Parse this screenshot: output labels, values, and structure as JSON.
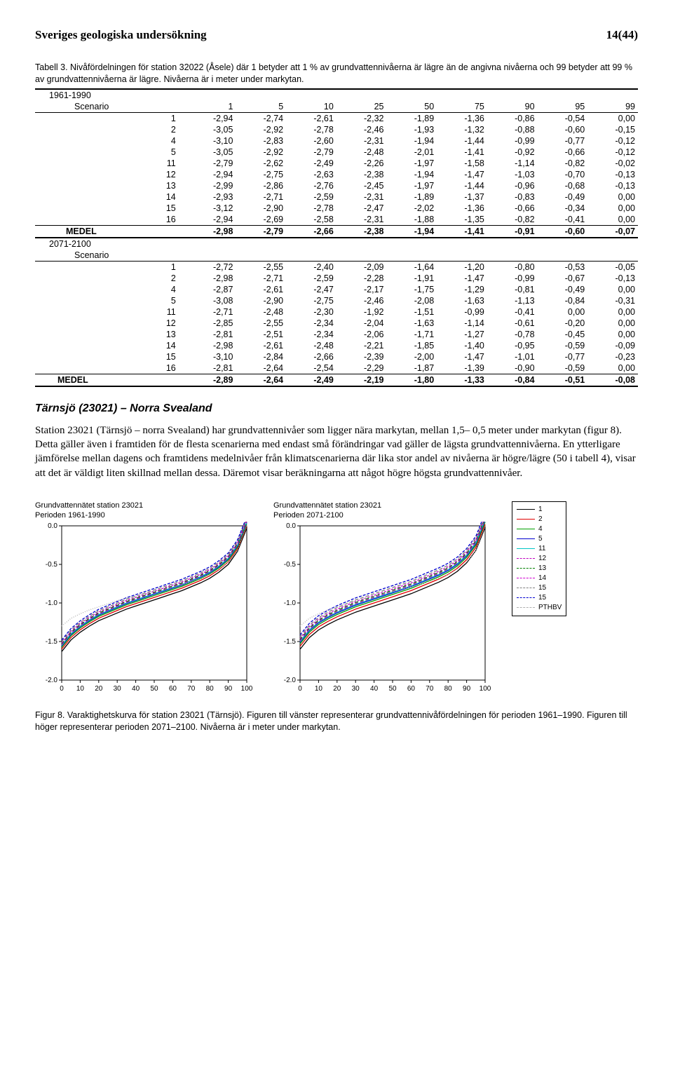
{
  "header": {
    "title": "Sveriges geologiska undersökning",
    "page": "14(44)"
  },
  "table": {
    "caption": "Tabell 3. Nivåfördelningen för station 32022 (Åsele) där 1 betyder att 1 % av grundvattennivåerna är lägre än de angivna nivåerna och 99 betyder att 99 % av grundvattennivåerna är lägre. Nivåerna är i meter under markytan.",
    "block1_label": "1961-1990",
    "block2_label": "2071-2100",
    "scenario_label": "Scenario",
    "medel_label": "MEDEL",
    "cols": [
      "1",
      "5",
      "10",
      "25",
      "50",
      "75",
      "90",
      "95",
      "99"
    ],
    "block1_rows": [
      [
        "1",
        "-2,94",
        "-2,74",
        "-2,61",
        "-2,32",
        "-1,89",
        "-1,36",
        "-0,86",
        "-0,54",
        "0,00"
      ],
      [
        "2",
        "-3,05",
        "-2,92",
        "-2,78",
        "-2,46",
        "-1,93",
        "-1,32",
        "-0,88",
        "-0,60",
        "-0,15"
      ],
      [
        "4",
        "-3,10",
        "-2,83",
        "-2,60",
        "-2,31",
        "-1,94",
        "-1,44",
        "-0,99",
        "-0,77",
        "-0,12"
      ],
      [
        "5",
        "-3,05",
        "-2,92",
        "-2,79",
        "-2,48",
        "-2,01",
        "-1,41",
        "-0,92",
        "-0,66",
        "-0,12"
      ],
      [
        "11",
        "-2,79",
        "-2,62",
        "-2,49",
        "-2,26",
        "-1,97",
        "-1,58",
        "-1,14",
        "-0,82",
        "-0,02"
      ],
      [
        "12",
        "-2,94",
        "-2,75",
        "-2,63",
        "-2,38",
        "-1,94",
        "-1,47",
        "-1,03",
        "-0,70",
        "-0,13"
      ],
      [
        "13",
        "-2,99",
        "-2,86",
        "-2,76",
        "-2,45",
        "-1,97",
        "-1,44",
        "-0,96",
        "-0,68",
        "-0,13"
      ],
      [
        "14",
        "-2,93",
        "-2,71",
        "-2,59",
        "-2,31",
        "-1,89",
        "-1,37",
        "-0,83",
        "-0,49",
        "0,00"
      ],
      [
        "15",
        "-3,12",
        "-2,90",
        "-2,78",
        "-2,47",
        "-2,02",
        "-1,36",
        "-0,66",
        "-0,34",
        "0,00"
      ],
      [
        "16",
        "-2,94",
        "-2,69",
        "-2,58",
        "-2,31",
        "-1,88",
        "-1,35",
        "-0,82",
        "-0,41",
        "0,00"
      ]
    ],
    "block1_medel": [
      "-2,98",
      "-2,79",
      "-2,66",
      "-2,38",
      "-1,94",
      "-1,41",
      "-0,91",
      "-0,60",
      "-0,07"
    ],
    "block2_rows": [
      [
        "1",
        "-2,72",
        "-2,55",
        "-2,40",
        "-2,09",
        "-1,64",
        "-1,20",
        "-0,80",
        "-0,53",
        "-0,05"
      ],
      [
        "2",
        "-2,98",
        "-2,71",
        "-2,59",
        "-2,28",
        "-1,91",
        "-1,47",
        "-0,99",
        "-0,67",
        "-0,13"
      ],
      [
        "4",
        "-2,87",
        "-2,61",
        "-2,47",
        "-2,17",
        "-1,75",
        "-1,29",
        "-0,81",
        "-0,49",
        "0,00"
      ],
      [
        "5",
        "-3,08",
        "-2,90",
        "-2,75",
        "-2,46",
        "-2,08",
        "-1,63",
        "-1,13",
        "-0,84",
        "-0,31"
      ],
      [
        "11",
        "-2,71",
        "-2,48",
        "-2,30",
        "-1,92",
        "-1,51",
        "-0,99",
        "-0,41",
        "0,00",
        "0,00"
      ],
      [
        "12",
        "-2,85",
        "-2,55",
        "-2,34",
        "-2,04",
        "-1,63",
        "-1,14",
        "-0,61",
        "-0,20",
        "0,00"
      ],
      [
        "13",
        "-2,81",
        "-2,51",
        "-2,34",
        "-2,06",
        "-1,71",
        "-1,27",
        "-0,78",
        "-0,45",
        "0,00"
      ],
      [
        "14",
        "-2,98",
        "-2,61",
        "-2,48",
        "-2,21",
        "-1,85",
        "-1,40",
        "-0,95",
        "-0,59",
        "-0,09"
      ],
      [
        "15",
        "-3,10",
        "-2,84",
        "-2,66",
        "-2,39",
        "-2,00",
        "-1,47",
        "-1,01",
        "-0,77",
        "-0,23"
      ],
      [
        "16",
        "-2,81",
        "-2,64",
        "-2,54",
        "-2,29",
        "-1,87",
        "-1,39",
        "-0,90",
        "-0,59",
        "0,00"
      ]
    ],
    "block2_medel": [
      "-2,89",
      "-2,64",
      "-2,49",
      "-2,19",
      "-1,80",
      "-1,33",
      "-0,84",
      "-0,51",
      "-0,08"
    ]
  },
  "section_heading": "Tärnsjö (23021) – Norra Svealand",
  "body_text": "Station 23021 (Tärnsjö – norra Svealand) har grundvattennivåer som ligger nära markytan, mellan 1,5– 0,5 meter under markytan (figur 8). Detta gäller även i framtiden för de flesta scenarierna med endast små förändringar vad gäller de lägsta grundvattennivåerna. En ytterligare jämförelse mellan dagens och framtidens medelnivåer från klimatscenarierna där lika stor andel av nivåerna är högre/lägre (50 i tabell 4), visar att det är väldigt liten skillnad mellan dessa. Däremot visar beräkningarna att något högre högsta grundvattennivåer.",
  "charts": {
    "left": {
      "title_l1": "Grundvattennätet station 23021",
      "title_l2": "Perioden 1961-1990"
    },
    "right": {
      "title_l1": "Grundvattennätet station 23021",
      "title_l2": "Perioden 2071-2100"
    },
    "ylim": [
      -2.0,
      0.0
    ],
    "yticks": [
      "0.0",
      "-0.5",
      "-1.0",
      "-1.5",
      "-2.0"
    ],
    "xlim": [
      0,
      100
    ],
    "xticks": [
      "0",
      "10",
      "20",
      "30",
      "40",
      "50",
      "60",
      "70",
      "80",
      "90",
      "100"
    ],
    "plot_bg": "#ffffff",
    "axis_color": "#000000",
    "tick_fontsize": 10,
    "series": [
      {
        "id": "1",
        "color": "#000000",
        "dash": ""
      },
      {
        "id": "2",
        "color": "#e00000",
        "dash": ""
      },
      {
        "id": "4",
        "color": "#00a000",
        "dash": ""
      },
      {
        "id": "5",
        "color": "#0000d0",
        "dash": ""
      },
      {
        "id": "11",
        "color": "#00c6c6",
        "dash": ""
      },
      {
        "id": "12",
        "color": "#c000c0",
        "dash": "5,3"
      },
      {
        "id": "13",
        "color": "#008000",
        "dash": "5,3"
      },
      {
        "id": "14",
        "color": "#d000d0",
        "dash": "3,2"
      },
      {
        "id": "15",
        "color": "#808080",
        "dash": "5,3"
      },
      {
        "id": "15b",
        "label": "15",
        "color": "#0000d0",
        "dash": "4,2"
      },
      {
        "id": "PTHBV",
        "color": "#b0b0b0",
        "dash": "1,2"
      }
    ],
    "left_data": {
      "x": [
        0,
        5,
        10,
        15,
        20,
        25,
        30,
        35,
        40,
        45,
        50,
        55,
        60,
        65,
        70,
        75,
        80,
        85,
        90,
        95,
        100
      ],
      "y_common": [
        -1.55,
        -1.4,
        -1.3,
        -1.22,
        -1.15,
        -1.1,
        -1.05,
        -1.0,
        -0.96,
        -0.92,
        -0.88,
        -0.84,
        -0.8,
        -0.76,
        -0.71,
        -0.66,
        -0.6,
        -0.52,
        -0.42,
        -0.25,
        0.05
      ],
      "spread": 0.08,
      "pthbv": [
        -1.3,
        -1.2,
        -1.14,
        -1.09,
        -1.05,
        -1.01,
        -0.97,
        -0.94,
        -0.91,
        -0.88,
        -0.85,
        -0.82,
        -0.79,
        -0.76,
        -0.72,
        -0.68,
        -0.63,
        -0.56,
        -0.47,
        -0.32,
        0.0
      ]
    },
    "right_data": {
      "x": [
        0,
        5,
        10,
        15,
        20,
        25,
        30,
        35,
        40,
        45,
        50,
        55,
        60,
        65,
        70,
        75,
        80,
        85,
        90,
        95,
        100
      ],
      "y_common": [
        -1.5,
        -1.35,
        -1.25,
        -1.18,
        -1.12,
        -1.07,
        -1.02,
        -0.98,
        -0.94,
        -0.9,
        -0.86,
        -0.82,
        -0.78,
        -0.73,
        -0.68,
        -0.63,
        -0.57,
        -0.49,
        -0.38,
        -0.22,
        0.08
      ],
      "spread": 0.1,
      "pthbv": [
        -1.3,
        -1.2,
        -1.14,
        -1.09,
        -1.05,
        -1.01,
        -0.97,
        -0.94,
        -0.91,
        -0.88,
        -0.85,
        -0.82,
        -0.79,
        -0.76,
        -0.72,
        -0.68,
        -0.63,
        -0.56,
        -0.47,
        -0.32,
        0.0
      ]
    }
  },
  "figure_caption": "Figur 8. Varaktighetskurva för station 23021 (Tärnsjö). Figuren till vänster representerar grundvattennivåfördelningen för perioden 1961–1990. Figuren till höger representerar perioden 2071–2100. Nivåerna är i meter under markytan."
}
